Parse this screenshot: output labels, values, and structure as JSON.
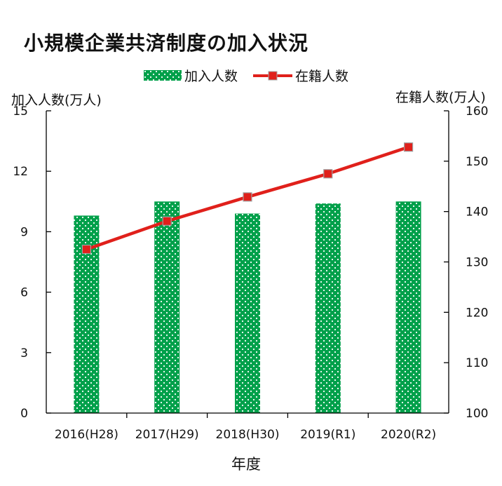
{
  "chart_data": {
    "title": "小規模企業共済制度の加入状況",
    "type": "bar+line",
    "categories": [
      "2016(H28)",
      "2017(H29)",
      "2018(H30)",
      "2019(R1)",
      "2020(R2)"
    ],
    "series": [
      {
        "name": "加入人数",
        "type": "bar",
        "axis": "left",
        "values": [
          9.8,
          10.5,
          9.9,
          10.4,
          10.5
        ]
      },
      {
        "name": "在籍人数",
        "type": "line",
        "axis": "right",
        "values": [
          132.5,
          138.1,
          142.9,
          147.5,
          152.8
        ]
      }
    ],
    "ylabel_left": "加入人数(万人)",
    "ylabel_right": "在籍人数(万人)",
    "xlabel": "年度",
    "ylim_left": [
      0,
      15
    ],
    "ylim_right": [
      100,
      160
    ],
    "yticks_left": [
      0,
      3,
      6,
      9,
      12,
      15
    ],
    "yticks_right": [
      100,
      110,
      120,
      130,
      140,
      150,
      160
    ],
    "legend_position": "top-center",
    "grid": false,
    "colors": {
      "bar": "#00a04a",
      "bar_dots": "#ffffff",
      "line": "#e0201b",
      "marker_fill": "#e0201b",
      "marker_edge": "#a0a0a0"
    }
  }
}
